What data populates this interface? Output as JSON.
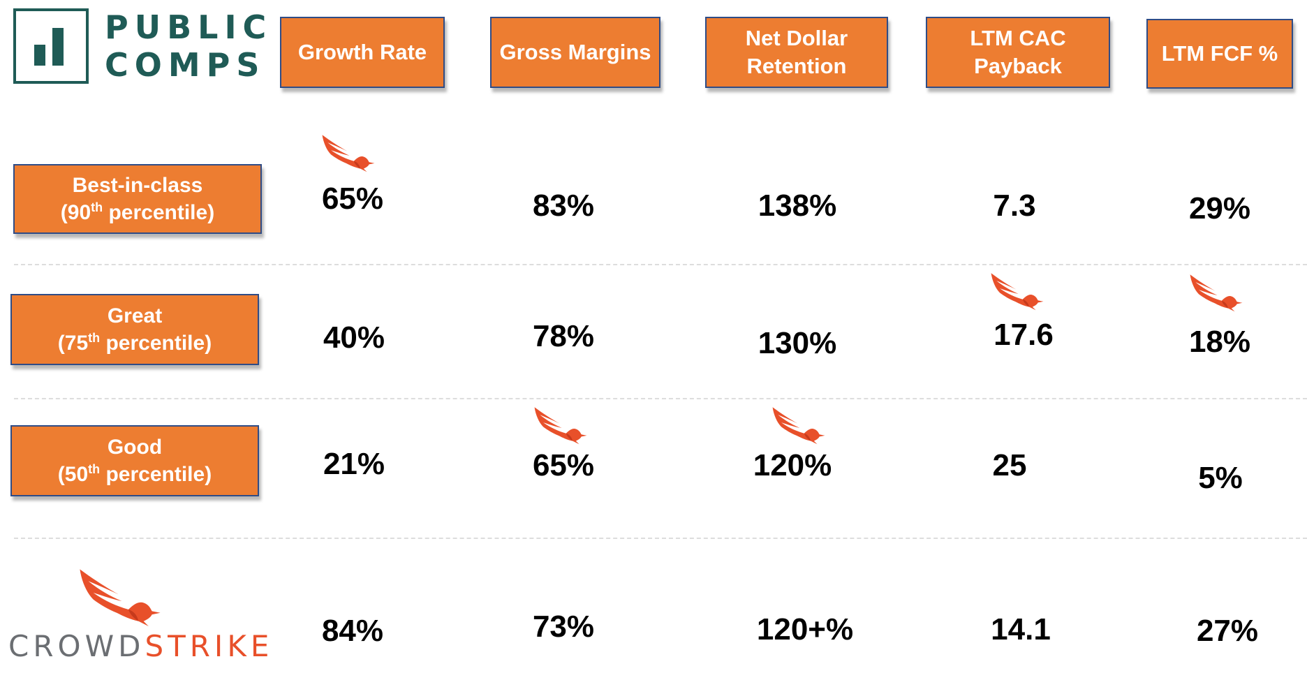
{
  "logo": {
    "line1": "PUBLIC",
    "line2": "COMPS"
  },
  "headers": [
    "Growth Rate",
    "Gross Margins",
    "Net Dollar",
    "Retention",
    "LTM CAC",
    "Payback",
    "LTM FCF %"
  ],
  "rows": [
    {
      "label": "Best-in-class",
      "pre": "(90",
      "sup": "th",
      "post": " percentile)"
    },
    {
      "label": "Great",
      "pre": "(75",
      "sup": "th",
      "post": " percentile)"
    },
    {
      "label": "Good",
      "pre": "(50",
      "sup": "th",
      "post": " percentile)"
    }
  ],
  "values": {
    "best": [
      "65%",
      "83%",
      "138%",
      "7.3",
      "29%"
    ],
    "great": [
      "40%",
      "78%",
      "130%",
      "17.6",
      "18%"
    ],
    "good": [
      "21%",
      "65%",
      "120%",
      "25",
      "5%"
    ],
    "crowdstrike": [
      "84%",
      "73%",
      "120+%",
      "14.1",
      "27%"
    ]
  },
  "crowdstrike": {
    "part1": "CROWD",
    "part2": "STRIKE"
  },
  "colors": {
    "orange": "#ed7d31",
    "teal": "#1f5b56",
    "falcon": "#e8502a",
    "border": "#2f4c86"
  },
  "icons": [
    "falcon-icon"
  ]
}
